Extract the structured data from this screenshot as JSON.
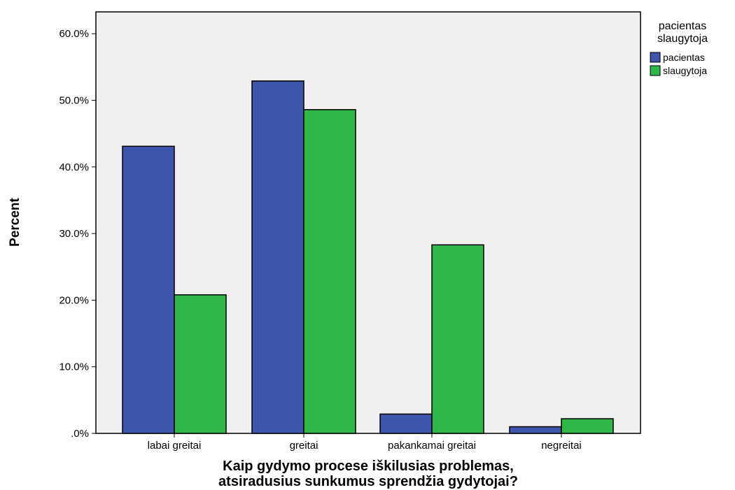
{
  "chart_data": {
    "type": "bar",
    "title": "",
    "xlabel": [
      "Kaip gydymo procese iškilusias problemas,",
      "atsiradusius sunkumus sprendžia gydytojai?"
    ],
    "ylabel": "Percent",
    "categories": [
      "labai greitai",
      "greitai",
      "pakankamai greitai",
      "negreitai"
    ],
    "series": [
      {
        "name": "pacientas",
        "color": "#3d55aa",
        "values": [
          43.1,
          52.9,
          2.9,
          1.0
        ]
      },
      {
        "name": "slaugytoja",
        "color": "#2fb84a",
        "values": [
          20.8,
          48.6,
          28.3,
          2.2
        ]
      }
    ],
    "ylim": [
      0,
      63
    ],
    "yticks": [
      0,
      10,
      20,
      30,
      40,
      50,
      60
    ],
    "ytick_labels": [
      ".0%",
      "10.0%",
      "20.0%",
      "30.0%",
      "40.0%",
      "50.0%",
      "60.0%"
    ],
    "legend": {
      "title": [
        "pacientas",
        "slaugytoja"
      ],
      "placement": "right"
    },
    "grid": false,
    "plot_background": "#f0f0f0"
  }
}
